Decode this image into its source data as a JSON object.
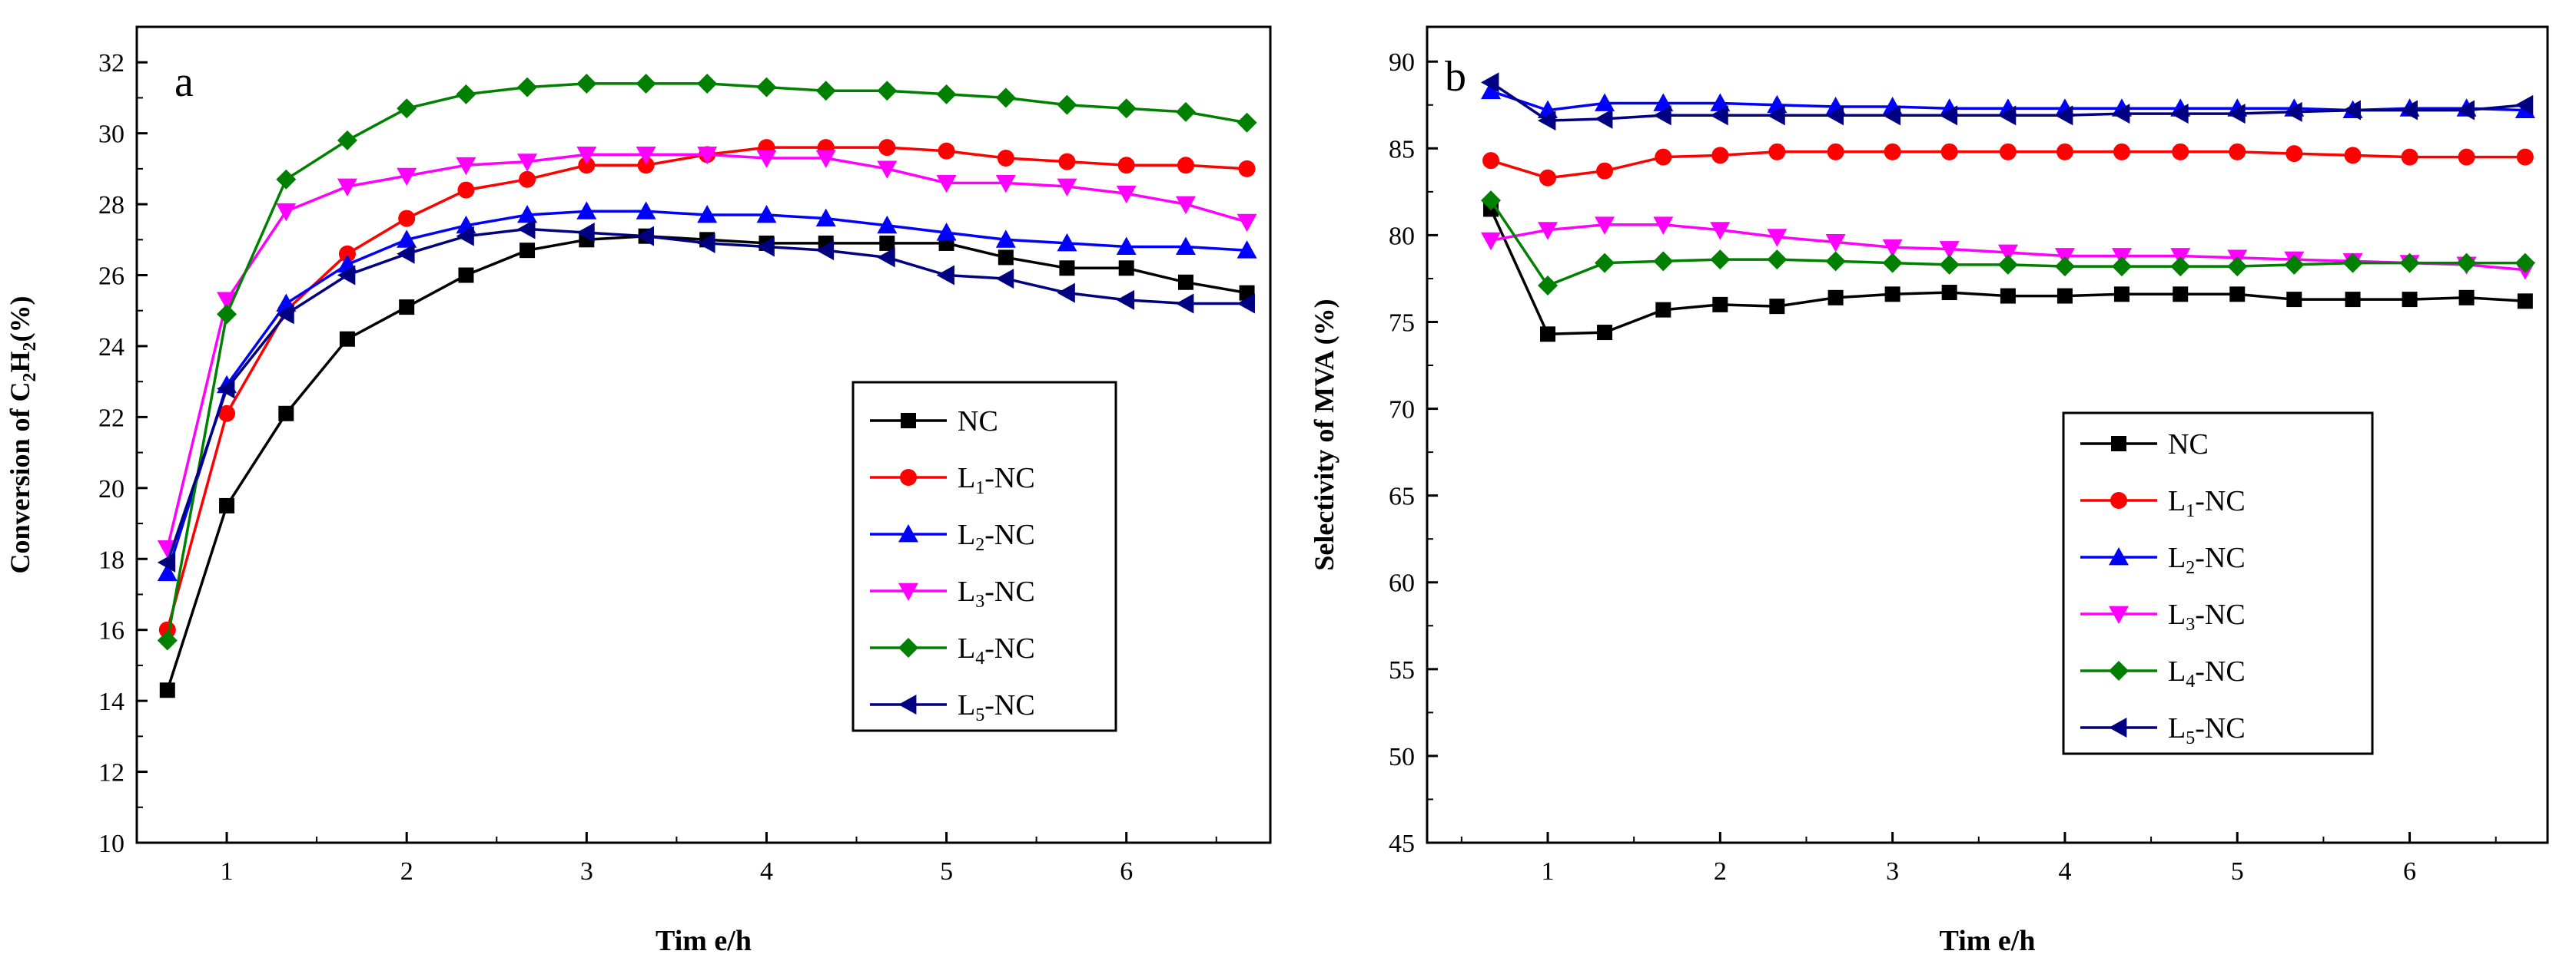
{
  "chart_data": [
    {
      "panel_label": "a",
      "type": "line",
      "xlabel": "Tim e/h",
      "ylabel": {
        "prefix": "Conversion of C",
        "sub1": "2",
        "mid": "H",
        "sub2": "2",
        "suffix": "(%)"
      },
      "xlim": [
        0.5,
        6.8
      ],
      "ylim": [
        10,
        33
      ],
      "xticks": [
        1,
        2,
        3,
        4,
        5,
        6
      ],
      "yticks": [
        10,
        12,
        14,
        16,
        18,
        20,
        22,
        24,
        26,
        28,
        30,
        32
      ],
      "legend_position": "right-center",
      "x": [
        0.67,
        1.0,
        1.33,
        1.67,
        2.0,
        2.33,
        2.67,
        3.0,
        3.33,
        3.67,
        4.0,
        4.33,
        4.67,
        5.0,
        5.33,
        5.67,
        6.0,
        6.33,
        6.67
      ],
      "series": [
        {
          "name": "NC",
          "label_main": "NC",
          "label_sub": "",
          "label_suffix": "",
          "color": "#000000",
          "marker": "square",
          "values": [
            14.3,
            19.5,
            22.1,
            24.2,
            25.1,
            26.0,
            26.7,
            27.0,
            27.1,
            27.0,
            26.9,
            26.9,
            26.9,
            26.9,
            26.5,
            26.2,
            26.2,
            25.8,
            25.5
          ]
        },
        {
          "name": "L1-NC",
          "label_main": "L",
          "label_sub": "1",
          "label_suffix": "-NC",
          "color": "#ff0000",
          "marker": "circle",
          "values": [
            16.0,
            22.1,
            25.0,
            26.6,
            27.6,
            28.4,
            28.7,
            29.1,
            29.1,
            29.4,
            29.6,
            29.6,
            29.6,
            29.5,
            29.3,
            29.2,
            29.1,
            29.1,
            29.0
          ]
        },
        {
          "name": "L2-NC",
          "label_main": "L",
          "label_sub": "2",
          "label_suffix": "-NC",
          "color": "#0000ff",
          "marker": "triangle-up",
          "values": [
            17.6,
            22.9,
            25.2,
            26.3,
            27.0,
            27.4,
            27.7,
            27.8,
            27.8,
            27.7,
            27.7,
            27.6,
            27.4,
            27.2,
            27.0,
            26.9,
            26.8,
            26.8,
            26.7
          ]
        },
        {
          "name": "L3-NC",
          "label_main": "L",
          "label_sub": "3",
          "label_suffix": "-NC",
          "color": "#ff00ff",
          "marker": "triangle-down",
          "values": [
            18.3,
            25.3,
            27.8,
            28.5,
            28.8,
            29.1,
            29.2,
            29.4,
            29.4,
            29.4,
            29.3,
            29.3,
            29.0,
            28.6,
            28.6,
            28.5,
            28.3,
            28.0,
            27.5
          ]
        },
        {
          "name": "L4-NC",
          "label_main": "L",
          "label_sub": "4",
          "label_suffix": "-NC",
          "color": "#008000",
          "marker": "diamond",
          "values": [
            15.7,
            24.9,
            28.7,
            29.8,
            30.7,
            31.1,
            31.3,
            31.4,
            31.4,
            31.4,
            31.3,
            31.2,
            31.2,
            31.1,
            31.0,
            30.8,
            30.7,
            30.6,
            30.3
          ]
        },
        {
          "name": "L5-NC",
          "label_main": "L",
          "label_sub": "5",
          "label_suffix": "-NC",
          "color": "#000080",
          "marker": "triangle-left",
          "values": [
            17.9,
            22.8,
            24.9,
            26.0,
            26.6,
            27.1,
            27.3,
            27.2,
            27.1,
            26.9,
            26.8,
            26.7,
            26.5,
            26.0,
            25.9,
            25.5,
            25.3,
            25.2,
            25.2
          ]
        }
      ]
    },
    {
      "panel_label": "b",
      "type": "line",
      "xlabel": "Tim e/h",
      "ylabel": {
        "prefix": "Selectivity of MVA (%)",
        "sub1": "",
        "mid": "",
        "sub2": "",
        "suffix": ""
      },
      "xlim": [
        0.3,
        6.8
      ],
      "ylim": [
        45,
        92
      ],
      "xticks": [
        1,
        2,
        3,
        4,
        5,
        6
      ],
      "yticks": [
        45,
        50,
        55,
        60,
        65,
        70,
        75,
        80,
        85,
        90
      ],
      "legend_position": "bottom-center",
      "x": [
        0.67,
        1.0,
        1.33,
        1.67,
        2.0,
        2.33,
        2.67,
        3.0,
        3.33,
        3.67,
        4.0,
        4.33,
        4.67,
        5.0,
        5.33,
        5.67,
        6.0,
        6.33,
        6.67
      ],
      "series": [
        {
          "name": "NC",
          "label_main": "NC",
          "label_sub": "",
          "label_suffix": "",
          "color": "#000000",
          "marker": "square",
          "values": [
            81.5,
            74.3,
            74.4,
            75.7,
            76.0,
            75.9,
            76.4,
            76.6,
            76.7,
            76.5,
            76.5,
            76.6,
            76.6,
            76.6,
            76.3,
            76.3,
            76.3,
            76.4,
            76.2
          ]
        },
        {
          "name": "L1-NC",
          "label_main": "L",
          "label_sub": "1",
          "label_suffix": "-NC",
          "color": "#ff0000",
          "marker": "circle",
          "values": [
            84.3,
            83.3,
            83.7,
            84.5,
            84.6,
            84.8,
            84.8,
            84.8,
            84.8,
            84.8,
            84.8,
            84.8,
            84.8,
            84.8,
            84.7,
            84.6,
            84.5,
            84.5,
            84.5
          ]
        },
        {
          "name": "L2-NC",
          "label_main": "L",
          "label_sub": "2",
          "label_suffix": "-NC",
          "color": "#0000ff",
          "marker": "triangle-up",
          "values": [
            88.3,
            87.2,
            87.6,
            87.6,
            87.6,
            87.5,
            87.4,
            87.4,
            87.3,
            87.3,
            87.3,
            87.3,
            87.3,
            87.3,
            87.3,
            87.2,
            87.3,
            87.3,
            87.2
          ]
        },
        {
          "name": "L3-NC",
          "label_main": "L",
          "label_sub": "3",
          "label_suffix": "-NC",
          "color": "#ff00ff",
          "marker": "triangle-down",
          "values": [
            79.7,
            80.3,
            80.6,
            80.6,
            80.3,
            79.9,
            79.6,
            79.3,
            79.2,
            79.0,
            78.8,
            78.8,
            78.8,
            78.7,
            78.6,
            78.5,
            78.4,
            78.3,
            78.0
          ]
        },
        {
          "name": "L4-NC",
          "label_main": "L",
          "label_sub": "4",
          "label_suffix": "-NC",
          "color": "#008000",
          "marker": "diamond",
          "values": [
            82.0,
            77.1,
            78.4,
            78.5,
            78.6,
            78.6,
            78.5,
            78.4,
            78.3,
            78.3,
            78.2,
            78.2,
            78.2,
            78.2,
            78.3,
            78.4,
            78.4,
            78.4,
            78.4
          ]
        },
        {
          "name": "L5-NC",
          "label_main": "L",
          "label_sub": "5",
          "label_suffix": "-NC",
          "color": "#000080",
          "marker": "triangle-left",
          "values": [
            88.8,
            86.6,
            86.7,
            86.9,
            86.9,
            86.9,
            86.9,
            86.9,
            86.9,
            86.9,
            86.9,
            87.0,
            87.0,
            87.0,
            87.1,
            87.2,
            87.2,
            87.2,
            87.5
          ]
        }
      ]
    }
  ]
}
